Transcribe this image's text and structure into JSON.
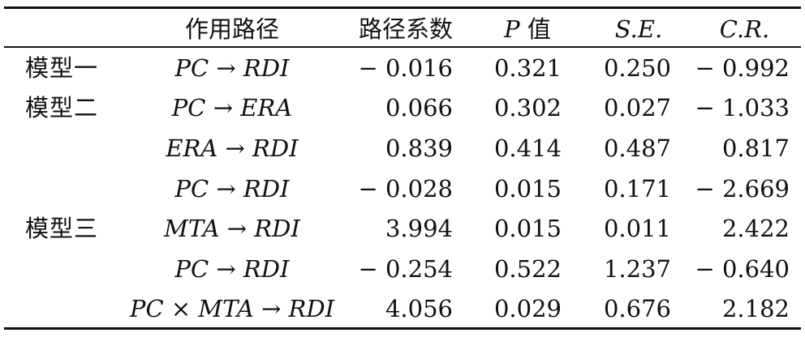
{
  "table": {
    "headers": {
      "path": "作用路径",
      "coef": "路径系数",
      "p_var": "P",
      "p_suffix": " 值",
      "se": "S.E.",
      "cr": "C.R."
    },
    "rows": [
      {
        "model": "模型一",
        "path": "PC → RDI",
        "coef": "− 0.016",
        "p": "0.321",
        "se": "0.250",
        "cr": "− 0.992"
      },
      {
        "model": "模型二",
        "path": "PC → ERA",
        "coef": "0.066",
        "p": "0.302",
        "se": "0.027",
        "cr": "− 1.033"
      },
      {
        "model": "",
        "path": "ERA → RDI",
        "coef": "0.839",
        "p": "0.414",
        "se": "0.487",
        "cr": "0.817"
      },
      {
        "model": "",
        "path": "PC → RDI",
        "coef": "− 0.028",
        "p": "0.015",
        "se": "0.171",
        "cr": "− 2.669"
      },
      {
        "model": "模型三",
        "path": "MTA → RDI",
        "coef": "3.994",
        "p": "0.015",
        "se": "0.011",
        "cr": "2.422"
      },
      {
        "model": "",
        "path": "PC → RDI",
        "coef": "− 0.254",
        "p": "0.522",
        "se": "1.237",
        "cr": "− 0.640"
      },
      {
        "model": "",
        "path": "PC × MTA → RDI",
        "coef": "4.056",
        "p": "0.029",
        "se": "0.676",
        "cr": "2.182"
      }
    ]
  }
}
